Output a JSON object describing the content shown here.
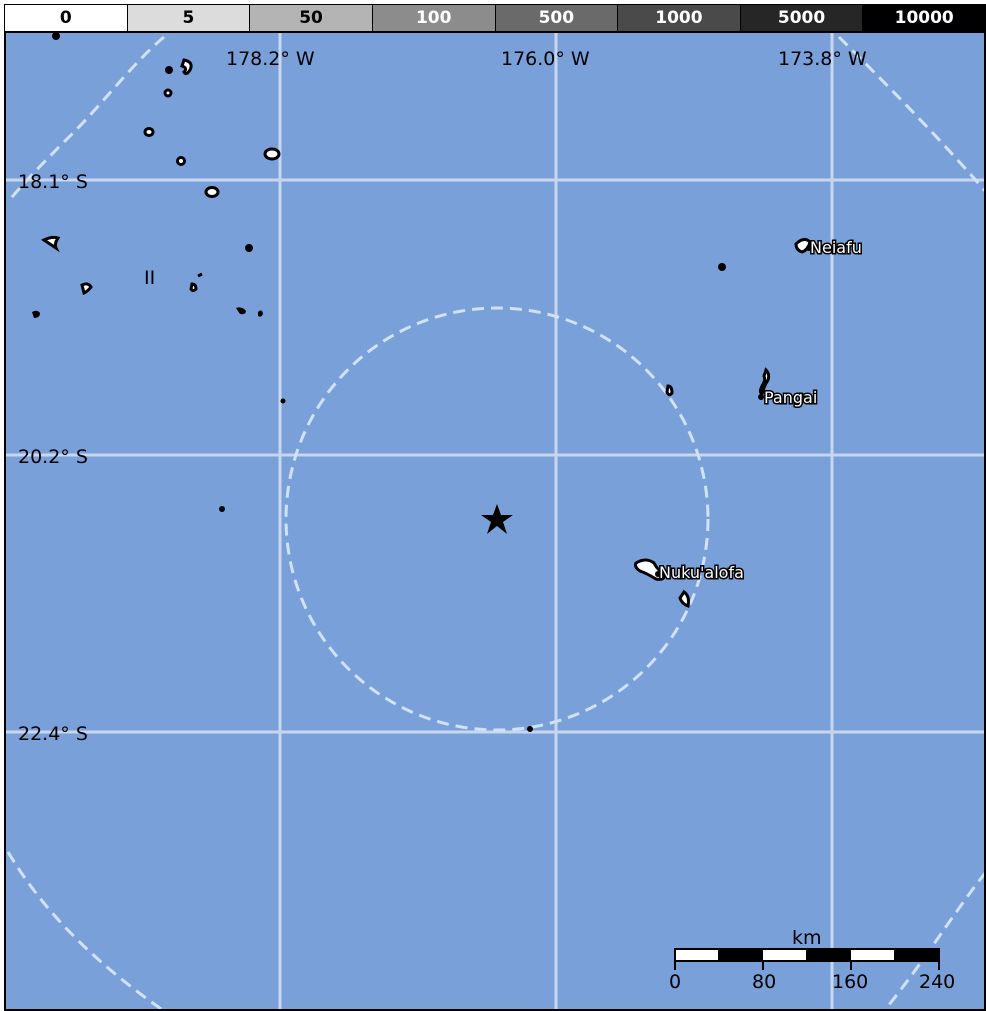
{
  "legend": {
    "bins": [
      {
        "label": "0",
        "bg": "#ffffff",
        "fg": "#000000"
      },
      {
        "label": "5",
        "bg": "#dcdcdc",
        "fg": "#000000"
      },
      {
        "label": "50",
        "bg": "#b4b4b4",
        "fg": "#000000"
      },
      {
        "label": "100",
        "bg": "#8c8c8c",
        "fg": "#ffffff"
      },
      {
        "label": "500",
        "bg": "#6a6a6a",
        "fg": "#ffffff"
      },
      {
        "label": "1000",
        "bg": "#4a4a4a",
        "fg": "#ffffff"
      },
      {
        "label": "5000",
        "bg": "#262626",
        "fg": "#ffffff"
      },
      {
        "label": "10000",
        "bg": "#000000",
        "fg": "#ffffff"
      }
    ]
  },
  "map": {
    "ocean_color": "#7aa0da",
    "grid_color": "#c8d6f0",
    "ring_color": "#cfe2f7",
    "lon_labels": [
      "178.2° W",
      "176.0° W",
      "173.8° W"
    ],
    "lat_labels": [
      "18.1° S",
      "20.2° S",
      "22.4° S"
    ],
    "epicenter_icon": "star-icon",
    "mmi_marker": "II",
    "cities": [
      "Neiafu",
      "Pangai",
      "Nuku'alofa"
    ]
  },
  "scale_bar": {
    "unit": "km",
    "ticks": [
      "0",
      "80",
      "160",
      "240"
    ]
  }
}
